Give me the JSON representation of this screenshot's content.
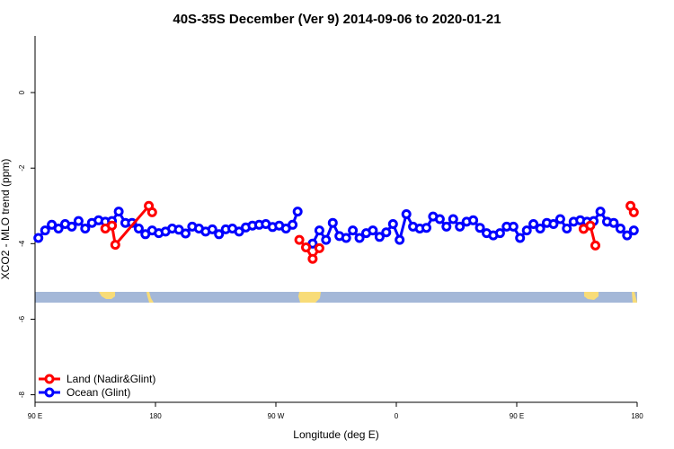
{
  "chart_data": {
    "type": "line",
    "title": "40S-35S December (Ver 9)   2014-09-06 to 2020-01-21",
    "xlabel": "Longitude (deg E)",
    "ylabel": "XCO2 - MLO trend (ppm)",
    "xlim": [
      0,
      360
    ],
    "ylim": [
      -8.2,
      1.5
    ],
    "x_ticks": [
      {
        "x": 0,
        "label": "90 E"
      },
      {
        "x": 72,
        "label": "180"
      },
      {
        "x": 144,
        "label": "90 W"
      },
      {
        "x": 216,
        "label": "0"
      },
      {
        "x": 288,
        "label": "90 E"
      },
      {
        "x": 360,
        "label": "180"
      }
    ],
    "y_ticks": [
      0,
      -2,
      -4,
      -6,
      -8
    ],
    "grid": false,
    "legend_position": "bottom-left",
    "colors": {
      "land": "#ff0000",
      "ocean": "#0000ff",
      "map_ocean": "#a4b8d8",
      "map_land": "#f8dc78"
    },
    "series": [
      {
        "name": "Land (Nadir&Glint)",
        "color": "#ff0000",
        "segments": [
          [
            {
              "x": 42,
              "y": -3.6
            },
            {
              "x": 46,
              "y": -3.52
            },
            {
              "x": 48,
              "y": -4.03
            },
            {
              "x": 68,
              "y": -3.0
            },
            {
              "x": 70,
              "y": -3.17
            }
          ],
          [
            {
              "x": 158,
              "y": -3.9
            },
            {
              "x": 162,
              "y": -4.1
            },
            {
              "x": 166,
              "y": -4.4
            },
            {
              "x": 170,
              "y": -4.12
            }
          ],
          [
            {
              "x": 328,
              "y": -3.61
            },
            {
              "x": 332,
              "y": -3.52
            },
            {
              "x": 335,
              "y": -4.05
            }
          ],
          [
            {
              "x": 356,
              "y": -3.0
            },
            {
              "x": 358,
              "y": -3.17
            }
          ]
        ]
      },
      {
        "name": "Ocean (Glint)",
        "color": "#0000ff",
        "segments": [
          [
            {
              "x": 2,
              "y": -3.85
            },
            {
              "x": 6,
              "y": -3.65
            },
            {
              "x": 10,
              "y": -3.5
            },
            {
              "x": 14,
              "y": -3.6
            },
            {
              "x": 18,
              "y": -3.48
            },
            {
              "x": 22,
              "y": -3.55
            },
            {
              "x": 26,
              "y": -3.4
            },
            {
              "x": 30,
              "y": -3.6
            },
            {
              "x": 34,
              "y": -3.45
            },
            {
              "x": 38,
              "y": -3.38
            },
            {
              "x": 42,
              "y": -3.42
            },
            {
              "x": 46,
              "y": -3.4
            },
            {
              "x": 50,
              "y": -3.15
            },
            {
              "x": 54,
              "y": -3.45
            },
            {
              "x": 58,
              "y": -3.45
            },
            {
              "x": 62,
              "y": -3.6
            },
            {
              "x": 66,
              "y": -3.75
            },
            {
              "x": 70,
              "y": -3.65
            },
            {
              "x": 74,
              "y": -3.72
            },
            {
              "x": 78,
              "y": -3.68
            },
            {
              "x": 82,
              "y": -3.6
            },
            {
              "x": 86,
              "y": -3.63
            },
            {
              "x": 90,
              "y": -3.73
            },
            {
              "x": 94,
              "y": -3.55
            },
            {
              "x": 98,
              "y": -3.6
            },
            {
              "x": 102,
              "y": -3.68
            },
            {
              "x": 106,
              "y": -3.62
            },
            {
              "x": 110,
              "y": -3.75
            },
            {
              "x": 114,
              "y": -3.62
            },
            {
              "x": 118,
              "y": -3.6
            },
            {
              "x": 122,
              "y": -3.68
            },
            {
              "x": 126,
              "y": -3.57
            },
            {
              "x": 130,
              "y": -3.52
            },
            {
              "x": 134,
              "y": -3.5
            },
            {
              "x": 138,
              "y": -3.48
            },
            {
              "x": 142,
              "y": -3.56
            },
            {
              "x": 146,
              "y": -3.52
            },
            {
              "x": 150,
              "y": -3.6
            },
            {
              "x": 154,
              "y": -3.5
            },
            {
              "x": 157,
              "y": -3.15
            }
          ],
          [
            {
              "x": 166,
              "y": -4.0
            },
            {
              "x": 170,
              "y": -3.65
            },
            {
              "x": 174,
              "y": -3.9
            },
            {
              "x": 178,
              "y": -3.45
            },
            {
              "x": 182,
              "y": -3.8
            },
            {
              "x": 186,
              "y": -3.85
            },
            {
              "x": 190,
              "y": -3.65
            },
            {
              "x": 194,
              "y": -3.85
            },
            {
              "x": 198,
              "y": -3.72
            },
            {
              "x": 202,
              "y": -3.65
            },
            {
              "x": 206,
              "y": -3.82
            },
            {
              "x": 210,
              "y": -3.7
            },
            {
              "x": 214,
              "y": -3.48
            },
            {
              "x": 218,
              "y": -3.9
            },
            {
              "x": 222,
              "y": -3.22
            },
            {
              "x": 226,
              "y": -3.55
            },
            {
              "x": 230,
              "y": -3.6
            },
            {
              "x": 234,
              "y": -3.58
            },
            {
              "x": 238,
              "y": -3.28
            },
            {
              "x": 242,
              "y": -3.35
            },
            {
              "x": 246,
              "y": -3.55
            },
            {
              "x": 250,
              "y": -3.35
            },
            {
              "x": 254,
              "y": -3.55
            },
            {
              "x": 258,
              "y": -3.42
            },
            {
              "x": 262,
              "y": -3.38
            },
            {
              "x": 266,
              "y": -3.58
            },
            {
              "x": 270,
              "y": -3.72
            },
            {
              "x": 274,
              "y": -3.78
            },
            {
              "x": 278,
              "y": -3.72
            },
            {
              "x": 282,
              "y": -3.55
            },
            {
              "x": 286,
              "y": -3.55
            },
            {
              "x": 290,
              "y": -3.85
            },
            {
              "x": 294,
              "y": -3.65
            },
            {
              "x": 298,
              "y": -3.48
            },
            {
              "x": 302,
              "y": -3.6
            },
            {
              "x": 306,
              "y": -3.45
            },
            {
              "x": 310,
              "y": -3.48
            },
            {
              "x": 314,
              "y": -3.35
            },
            {
              "x": 318,
              "y": -3.6
            },
            {
              "x": 322,
              "y": -3.42
            },
            {
              "x": 326,
              "y": -3.38
            },
            {
              "x": 330,
              "y": -3.42
            },
            {
              "x": 334,
              "y": -3.4
            },
            {
              "x": 338,
              "y": -3.15
            },
            {
              "x": 342,
              "y": -3.42
            },
            {
              "x": 346,
              "y": -3.45
            },
            {
              "x": 350,
              "y": -3.6
            },
            {
              "x": 354,
              "y": -3.78
            },
            {
              "x": 358,
              "y": -3.65
            }
          ]
        ]
      }
    ]
  }
}
